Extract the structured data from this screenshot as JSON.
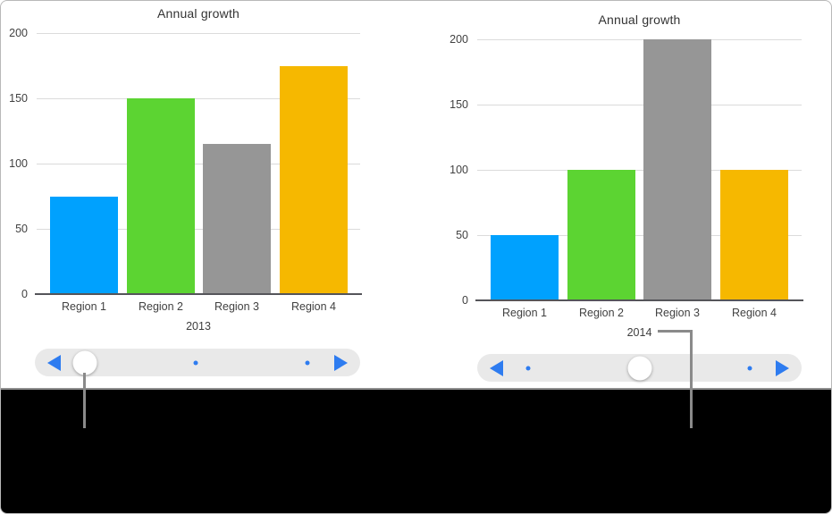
{
  "chart_data": [
    {
      "type": "bar",
      "title": "Annual growth",
      "xlabel": "2013",
      "ylabel": "",
      "categories": [
        "Region 1",
        "Region 2",
        "Region 3",
        "Region 4"
      ],
      "values": [
        75,
        150,
        115,
        175
      ],
      "bar_colors": [
        "#00A1FE",
        "#5CD432",
        "#969696",
        "#F6B800"
      ],
      "y_ticks": [
        "200",
        "150",
        "100",
        "50",
        "0"
      ],
      "ylim": [
        0,
        200
      ],
      "grid": "horizontal",
      "legend": "none"
    },
    {
      "type": "bar",
      "title": "Annual growth",
      "xlabel": "2014",
      "ylabel": "",
      "categories": [
        "Region 1",
        "Region 2",
        "Region 3",
        "Region 4"
      ],
      "values": [
        50,
        100,
        200,
        100
      ],
      "bar_colors": [
        "#00A1FE",
        "#5CD432",
        "#969696",
        "#F6B800"
      ],
      "y_ticks": [
        "200",
        "150",
        "100",
        "50",
        "0"
      ],
      "ylim": [
        0,
        200
      ],
      "grid": "horizontal",
      "legend": "none"
    }
  ],
  "sliders": [
    {
      "knob_percent": 15.4,
      "dot_percents": [
        49.5,
        83.8
      ]
    },
    {
      "knob_percent": 50.1,
      "dot_percents": [
        15.7,
        84.0
      ]
    }
  ],
  "colors": {
    "slider_accent": "#2E7CF0",
    "slider_track": "#E9E9E9",
    "callout_line": "#8A8A8A",
    "grid_line": "#DBDBDB",
    "axis_line": "#55555A"
  }
}
